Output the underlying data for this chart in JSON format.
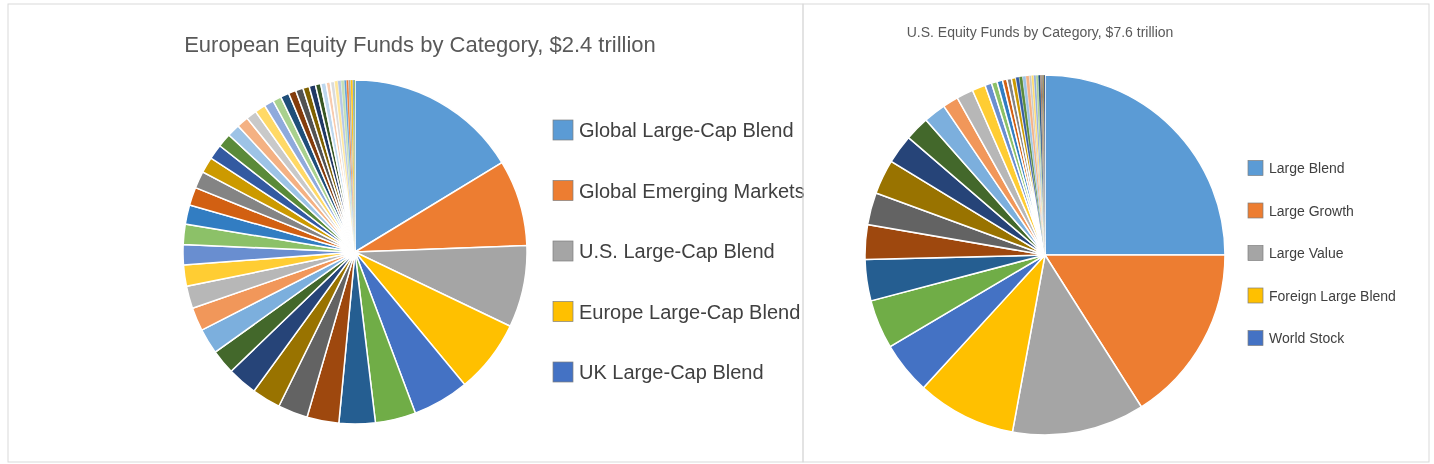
{
  "chart_data": [
    {
      "type": "pie",
      "title": "European Equity Funds by Category, $2.4 trillion",
      "legend": "right",
      "categories": [
        "Global Large-Cap Blend",
        "Global Emerging Markets",
        "U.S. Large-Cap Blend",
        "Europe Large-Cap Blend",
        "UK Large-Cap Blend",
        null,
        null,
        null,
        null,
        null,
        null,
        null,
        null,
        null,
        null,
        null,
        null,
        null,
        null,
        null,
        null,
        null,
        null,
        null,
        null,
        null,
        null,
        null,
        null,
        null,
        null,
        null,
        null,
        null,
        null,
        null,
        null,
        null,
        null,
        null,
        null,
        null,
        null,
        null,
        null,
        null,
        null,
        null
      ],
      "values": [
        16.3,
        8.1,
        7.7,
        6.9,
        5.3,
        3.8,
        3.4,
        3.0,
        2.8,
        2.7,
        2.8,
        2.3,
        2.4,
        2.2,
        2.1,
        2.0,
        1.9,
        1.9,
        1.8,
        1.7,
        1.6,
        1.5,
        1.4,
        1.3,
        1.2,
        1.1,
        1.0,
        1.0,
        0.9,
        0.8,
        0.8,
        0.7,
        0.7,
        0.6,
        0.6,
        0.5,
        0.5,
        0.4,
        0.4,
        0.3,
        0.3,
        0.3,
        0.2,
        0.2,
        0.2,
        0.2,
        0.1,
        0.1
      ],
      "colors": [
        "#5b9bd5",
        "#ed7d31",
        "#a5a5a5",
        "#ffc000",
        "#4472c4",
        "#70ad47",
        "#255e91",
        "#9e480e",
        "#636363",
        "#997300",
        "#264478",
        "#43682b",
        "#7cafdd",
        "#f1975a",
        "#b7b7b7",
        "#ffcd33",
        "#698ed0",
        "#8cc168",
        "#327dc2",
        "#d26012",
        "#848484",
        "#cc9a00",
        "#335aa1",
        "#5a8a39",
        "#9dc3e6",
        "#f4b183",
        "#c9c9c9",
        "#ffd966",
        "#8faadc",
        "#a9d18e",
        "#1f4e79",
        "#843c0c",
        "#525252",
        "#7f6000",
        "#203864",
        "#375623",
        "#bdd7ee",
        "#f8cbad",
        "#dbdbdb",
        "#ffe699",
        "#b4c7e7",
        "#c5e0b4",
        "#5b9bd5",
        "#ed7d31",
        "#a5a5a5",
        "#ffc000",
        "#4472c4",
        "#70ad47"
      ]
    },
    {
      "type": "pie",
      "title": "U.S. Equity Funds by Category, $7.6 trillion",
      "legend": "right",
      "categories": [
        "Large Blend",
        "Large Growth",
        "Large Value",
        "Foreign Large Blend",
        "World Stock",
        null,
        null,
        null,
        null,
        null,
        null,
        null,
        null,
        null,
        null,
        null,
        null,
        null,
        null,
        null,
        null,
        null,
        null,
        null,
        null,
        null,
        null,
        null,
        null,
        null,
        null,
        null,
        null,
        null,
        null
      ],
      "values": [
        25.0,
        16.0,
        11.9,
        8.9,
        4.7,
        4.4,
        3.7,
        3.1,
        2.9,
        3.1,
        2.6,
        2.2,
        2.0,
        1.4,
        1.5,
        1.2,
        0.6,
        0.5,
        0.5,
        0.4,
        0.4,
        0.4,
        0.3,
        0.3,
        0.3,
        0.3,
        0.2,
        0.2,
        0.2,
        0.2,
        0.2,
        0.1,
        0.1,
        0.1,
        0.1
      ],
      "colors": [
        "#5b9bd5",
        "#ed7d31",
        "#a5a5a5",
        "#ffc000",
        "#4472c4",
        "#70ad47",
        "#255e91",
        "#9e480e",
        "#636363",
        "#997300",
        "#264478",
        "#43682b",
        "#7cafdd",
        "#f1975a",
        "#b7b7b7",
        "#ffcd33",
        "#698ed0",
        "#8cc168",
        "#327dc2",
        "#d26012",
        "#848484",
        "#cc9a00",
        "#335aa1",
        "#5a8a39",
        "#9dc3e6",
        "#f4b183",
        "#c9c9c9",
        "#ffd966",
        "#8faadc",
        "#a9d18e",
        "#1f4e79",
        "#843c0c",
        "#525252",
        "#7f6000",
        "#203864"
      ]
    }
  ]
}
